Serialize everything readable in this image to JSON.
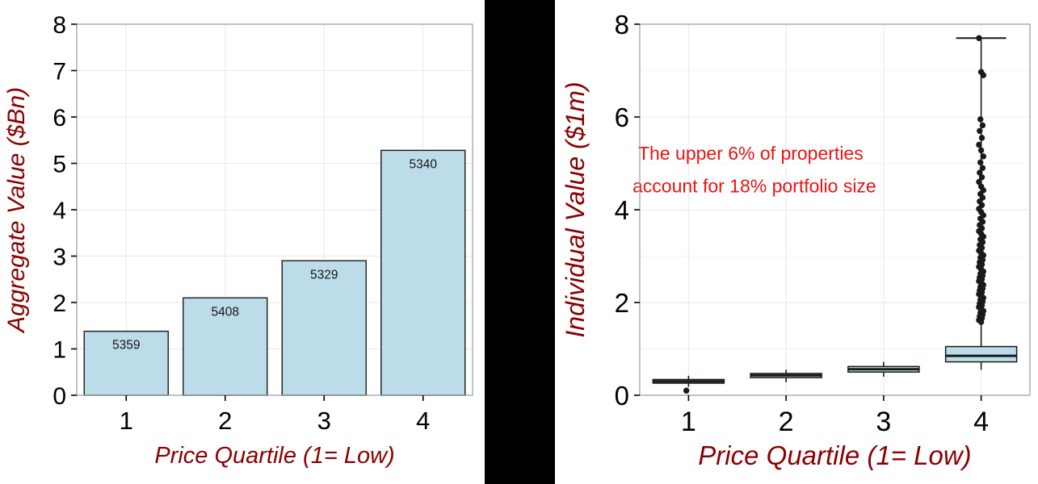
{
  "figure": {
    "background": "#ffffff",
    "divider_color": "#000000"
  },
  "colors": {
    "axis_label": "#8b0000",
    "tick_label": "#000000",
    "bar_fill": "#bcdcea",
    "bar_stroke": "#1a1a1a",
    "box_fill": "#bcdcea",
    "box_stroke": "#1a1a1a",
    "panel_border": "#9a9a9a",
    "grid_major": "#e9e9e9",
    "grid_minor": "#f4f4f4",
    "annotation": "#ee1111",
    "outlier": "#1a1a1a",
    "bar_label": "#151515"
  },
  "chart_data": [
    {
      "type": "bar",
      "title": "",
      "categories": [
        "1",
        "2",
        "3",
        "4"
      ],
      "values": [
        1.38,
        2.1,
        2.9,
        5.28
      ],
      "bar_labels": [
        "5359",
        "5408",
        "5329",
        "5340"
      ],
      "xlabel": "Price Quartile (1= Low)",
      "ylabel": "Aggregate Value ($Bn)",
      "ylim": [
        0,
        8
      ],
      "yticks": [
        0,
        1,
        2,
        3,
        4,
        5,
        6,
        7,
        8
      ],
      "grid": true,
      "legend": false
    },
    {
      "type": "boxplot",
      "title": "",
      "categories": [
        "1",
        "2",
        "3",
        "4"
      ],
      "xlabel": "Price Quartile (1= Low)",
      "ylabel": "Individual Value ($1m)",
      "ylim": [
        0,
        8
      ],
      "yticks": [
        0,
        2,
        4,
        6,
        8
      ],
      "yticks_minor": [
        1,
        3,
        5,
        7
      ],
      "grid": true,
      "legend": false,
      "boxes": [
        {
          "category": "1",
          "lo": 0.18,
          "q1": 0.26,
          "median": 0.3,
          "q3": 0.34,
          "hi": 0.42,
          "cap": false,
          "outliers": [
            0.1
          ]
        },
        {
          "category": "2",
          "lo": 0.28,
          "q1": 0.38,
          "median": 0.43,
          "q3": 0.47,
          "hi": 0.55,
          "cap": false,
          "outliers": []
        },
        {
          "category": "3",
          "lo": 0.4,
          "q1": 0.5,
          "median": 0.56,
          "q3": 0.62,
          "hi": 0.72,
          "cap": false,
          "outliers": []
        },
        {
          "category": "4",
          "lo": 0.55,
          "q1": 0.72,
          "median": 0.85,
          "q3": 1.05,
          "hi": 7.7,
          "cap": true,
          "outliers": [
            7.7,
            6.97,
            6.9,
            5.95,
            5.82,
            5.7,
            5.55,
            5.4,
            5.28,
            5.15,
            5.02,
            4.9,
            4.8,
            4.7,
            4.6,
            4.5,
            4.42,
            4.34,
            4.26,
            4.18,
            4.1,
            4.02,
            3.95,
            3.88,
            3.81,
            3.74,
            3.67,
            3.6,
            3.54,
            3.48,
            3.42,
            3.36,
            3.3,
            3.24,
            3.18,
            3.12,
            3.07,
            3.02,
            2.97,
            2.92,
            2.87,
            2.82,
            2.77,
            2.72,
            2.67,
            2.62,
            2.58,
            2.54,
            2.5,
            2.46,
            2.42,
            2.38,
            2.34,
            2.3,
            2.26,
            2.22,
            2.18,
            2.14,
            2.1,
            2.06,
            2.02,
            1.98,
            1.94,
            1.9,
            1.86,
            1.82,
            1.78,
            1.74,
            1.7,
            1.66,
            1.62,
            1.58
          ]
        }
      ],
      "annotation": {
        "lines": [
          "The upper 6% of properties",
          "account for 18% portfolio size"
        ],
        "y_values": [
          5.08,
          4.37
        ]
      }
    }
  ]
}
